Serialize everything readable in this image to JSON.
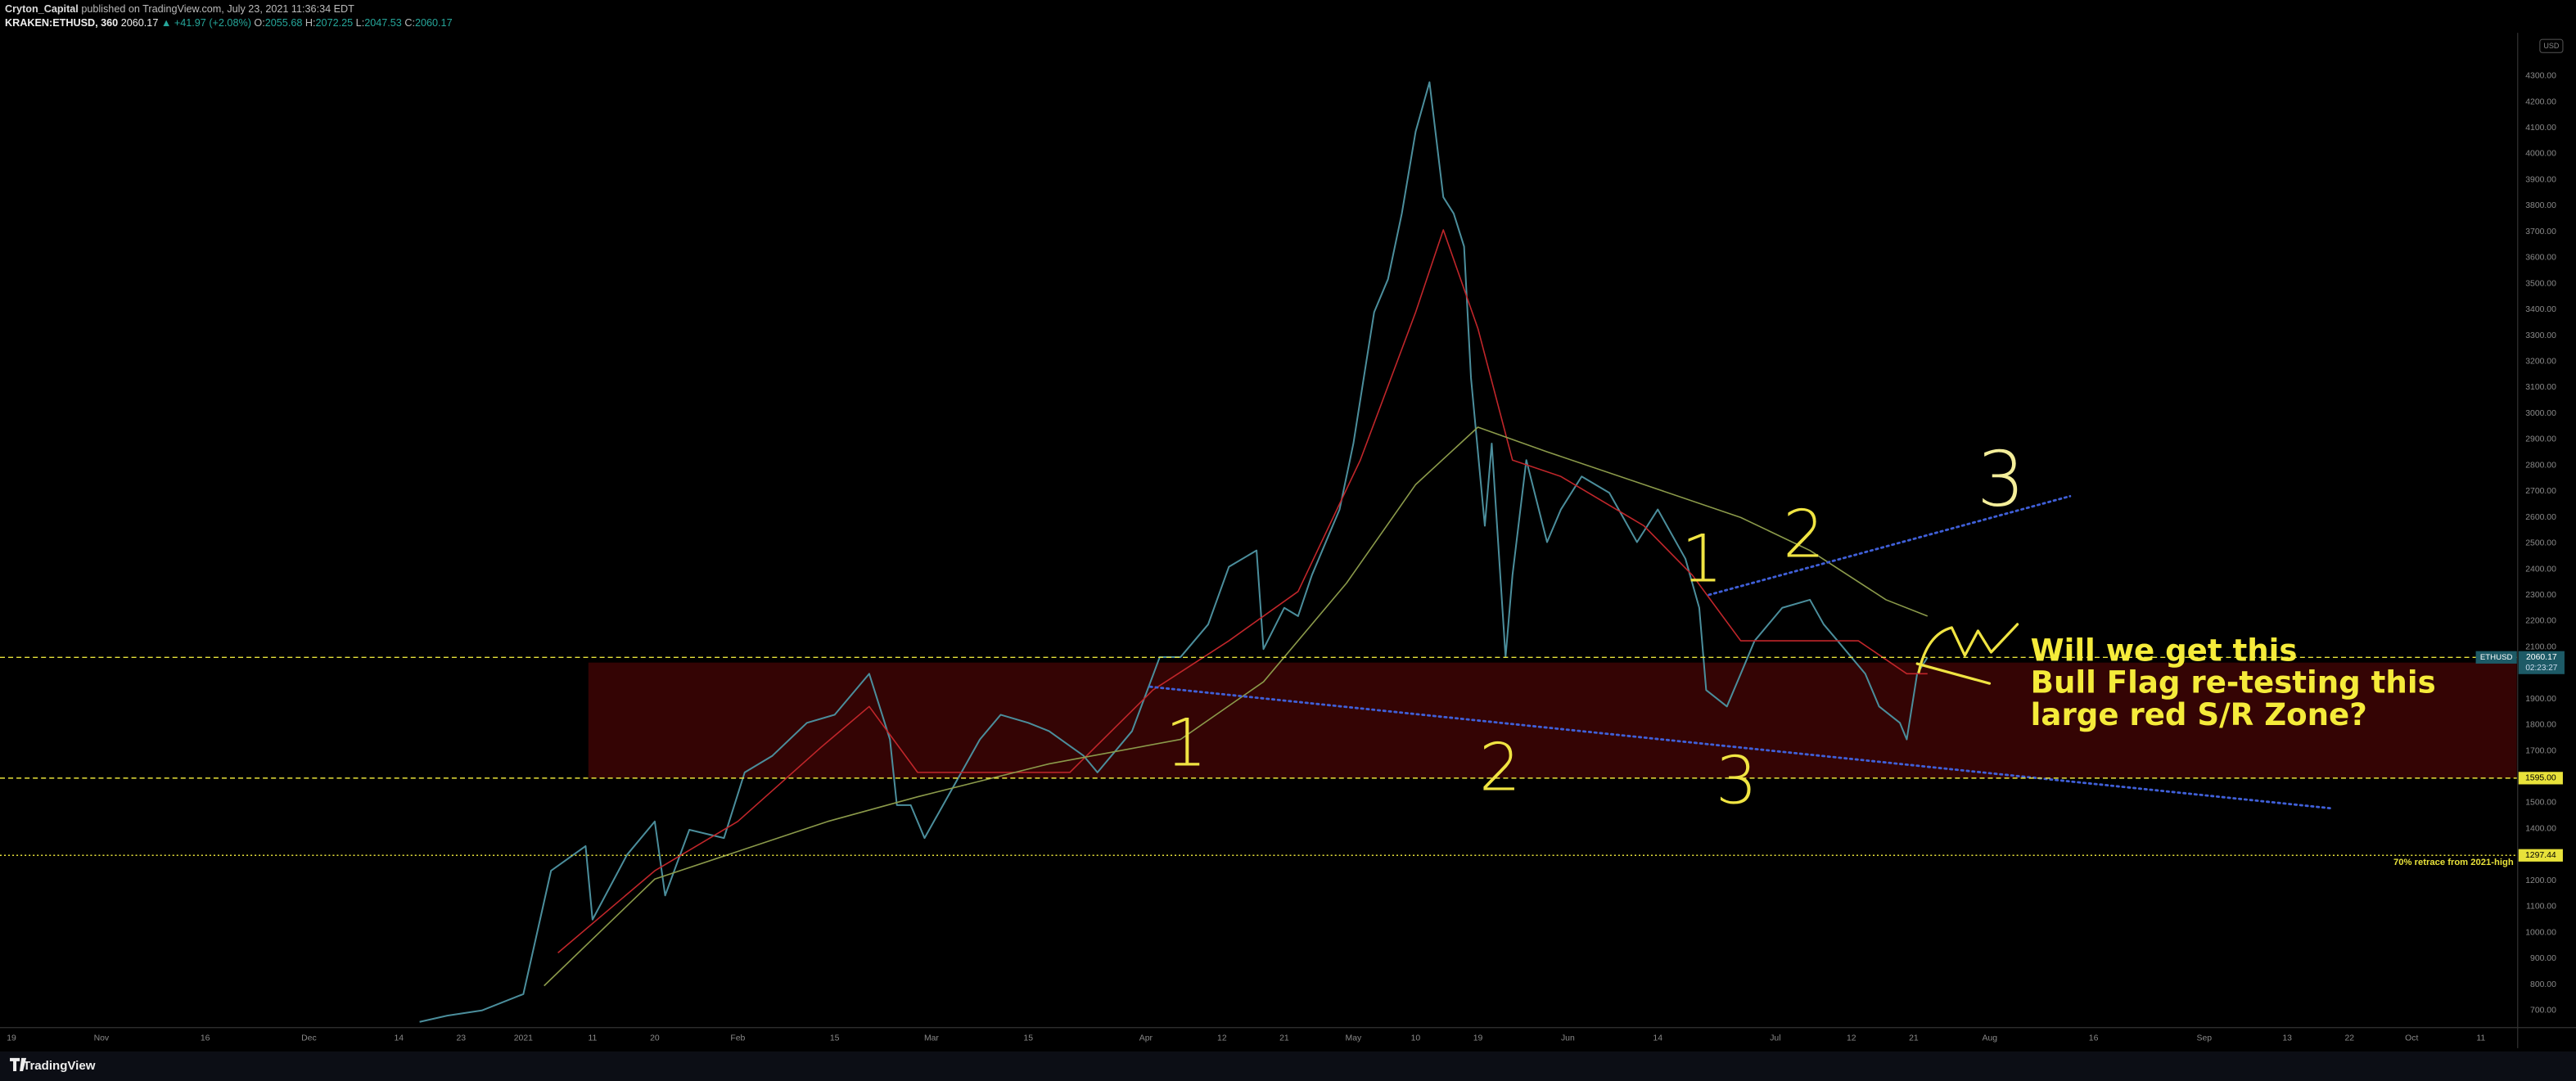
{
  "header": {
    "author": "Cryton_Capital",
    "published": "published on TradingView.com, July 23, 2021 11:36:34 EDT",
    "symbol": "KRAKEN:ETHUSD, 360",
    "price": "2060.17",
    "change": "▲ +41.97 (+2.08%)",
    "ohlc": [
      {
        "key": "O:",
        "value": "2055.68"
      },
      {
        "key": "H:",
        "value": "2072.25"
      },
      {
        "key": "L:",
        "value": "2047.53"
      },
      {
        "key": "C:",
        "value": "2060.17"
      }
    ],
    "currency": "USD",
    "brand": "TradingView"
  },
  "chart_data": {
    "type": "line",
    "xlim": [
      -1.66,
      362.2
    ],
    "ylim": [
      637,
      4466
    ],
    "grid": false,
    "xticks": [
      {
        "value": 0,
        "label": "19"
      },
      {
        "value": 13,
        "label": "Nov"
      },
      {
        "value": 28,
        "label": "16"
      },
      {
        "value": 43,
        "label": "Dec"
      },
      {
        "value": 56,
        "label": "14"
      },
      {
        "value": 65,
        "label": "23"
      },
      {
        "value": 74,
        "label": "2021"
      },
      {
        "value": 84,
        "label": "11"
      },
      {
        "value": 93,
        "label": "20"
      },
      {
        "value": 105,
        "label": "Feb"
      },
      {
        "value": 119,
        "label": "15"
      },
      {
        "value": 133,
        "label": "Mar"
      },
      {
        "value": 147,
        "label": "15"
      },
      {
        "value": 164,
        "label": "Apr"
      },
      {
        "value": 175,
        "label": "12"
      },
      {
        "value": 184,
        "label": "21"
      },
      {
        "value": 194,
        "label": "May"
      },
      {
        "value": 203,
        "label": "10"
      },
      {
        "value": 212,
        "label": "19"
      },
      {
        "value": 225,
        "label": "Jun"
      },
      {
        "value": 238,
        "label": "14"
      },
      {
        "value": 255,
        "label": "Jul"
      },
      {
        "value": 266,
        "label": "12"
      },
      {
        "value": 275,
        "label": "21"
      },
      {
        "value": 286,
        "label": "Aug"
      },
      {
        "value": 301,
        "label": "16"
      },
      {
        "value": 317,
        "label": "Sep"
      },
      {
        "value": 329,
        "label": "13"
      },
      {
        "value": 338,
        "label": "22"
      },
      {
        "value": 347,
        "label": "Oct"
      },
      {
        "value": 357,
        "label": "11"
      }
    ],
    "yticks": [
      {
        "value": 700,
        "label": "700.00"
      },
      {
        "value": 800,
        "label": "800.00"
      },
      {
        "value": 900,
        "label": "900.00"
      },
      {
        "value": 1000,
        "label": "1000.00"
      },
      {
        "value": 1100,
        "label": "1100.00"
      },
      {
        "value": 1200,
        "label": "1200.00"
      },
      {
        "value": 1400,
        "label": "1400.00"
      },
      {
        "value": 1500,
        "label": "1500.00"
      },
      {
        "value": 1700,
        "label": "1700.00"
      },
      {
        "value": 1800,
        "label": "1800.00"
      },
      {
        "value": 1900,
        "label": "1900.00"
      },
      {
        "value": 2100,
        "label": "2100.00"
      },
      {
        "value": 2200,
        "label": "2200.00"
      },
      {
        "value": 2300,
        "label": "2300.00"
      },
      {
        "value": 2400,
        "label": "2400.00"
      },
      {
        "value": 2500,
        "label": "2500.00"
      },
      {
        "value": 2600,
        "label": "2600.00"
      },
      {
        "value": 2700,
        "label": "2700.00"
      },
      {
        "value": 2800,
        "label": "2800.00"
      },
      {
        "value": 2900,
        "label": "2900.00"
      },
      {
        "value": 3000,
        "label": "3000.00"
      },
      {
        "value": 3100,
        "label": "3100.00"
      },
      {
        "value": 3200,
        "label": "3200.00"
      },
      {
        "value": 3300,
        "label": "3300.00"
      },
      {
        "value": 3400,
        "label": "3400.00"
      },
      {
        "value": 3500,
        "label": "3500.00"
      },
      {
        "value": 3600,
        "label": "3600.00"
      },
      {
        "value": 3700,
        "label": "3700.00"
      },
      {
        "value": 3800,
        "label": "3800.00"
      },
      {
        "value": 3900,
        "label": "3900.00"
      },
      {
        "value": 4000,
        "label": "4000.00"
      },
      {
        "value": 4100,
        "label": "4100.00"
      },
      {
        "value": 4200,
        "label": "4200.00"
      },
      {
        "value": 4300,
        "label": "4300.00"
      }
    ],
    "series": [
      {
        "color": "#4b8e9c",
        "x": [
          59,
          63,
          68,
          74,
          78,
          83,
          84,
          89,
          93,
          94.5,
          98,
          103,
          106,
          110,
          115,
          119,
          124,
          127,
          128,
          130,
          132,
          136,
          140,
          143,
          147,
          150,
          155,
          157,
          162,
          166,
          169,
          173,
          176,
          180,
          181,
          184,
          186,
          188,
          192,
          194,
          197,
          199,
          201,
          203,
          205,
          207,
          208.5,
          210,
          211,
          213,
          214,
          216,
          217,
          219,
          222,
          224,
          227,
          231,
          235,
          238,
          242,
          244,
          245,
          248,
          250,
          252,
          256,
          260,
          262,
          264,
          268,
          270,
          273,
          274,
          275.5,
          277
        ],
        "values": [
          656,
          680,
          700,
          763,
          1238,
          1333,
          1050,
          1300,
          1428,
          1143,
          1396,
          1364,
          1617,
          1681,
          1808,
          1839,
          1997,
          1744,
          1491,
          1491,
          1364,
          1554,
          1744,
          1839,
          1808,
          1776,
          1681,
          1617,
          1776,
          2061,
          2061,
          2187,
          2409,
          2472,
          2092,
          2251,
          2219,
          2377,
          2630,
          2884,
          3390,
          3517,
          3770,
          4086,
          4276,
          3833,
          3770,
          3643,
          3137,
          2567,
          2884,
          2061,
          2377,
          2820,
          2504,
          2630,
          2757,
          2694,
          2504,
          2630,
          2440,
          2251,
          1934,
          1871,
          1997,
          2124,
          2251,
          2282,
          2187,
          2124,
          1997,
          1871,
          1808,
          1744,
          1997,
          2060.17
        ]
      },
      {
        "color": "#c0262a",
        "x": [
          79,
          93,
          105,
          117,
          124,
          131,
          141,
          153,
          165,
          176,
          186,
          195,
          203,
          207,
          212,
          217,
          224,
          236,
          243,
          250,
          260,
          267,
          274,
          277
        ],
        "values": [
          922,
          1238,
          1428,
          1713,
          1871,
          1617,
          1617,
          1617,
          1934,
          2124,
          2314,
          2820,
          3390,
          3707,
          3327,
          2820,
          2757,
          2567,
          2377,
          2124,
          2124,
          2124,
          1997,
          1997
        ]
      },
      {
        "color": "#8b9a4a",
        "x": [
          77,
          93,
          118,
          131,
          150,
          169,
          181,
          193,
          203,
          212,
          222,
          236,
          250,
          260,
          271,
          277
        ],
        "values": [
          795,
          1206,
          1428,
          1523,
          1650,
          1744,
          1966,
          2346,
          2726,
          2947,
          2852,
          2726,
          2599,
          2472,
          2282,
          2219
        ]
      }
    ],
    "zone": {
      "ylim": [
        1595,
        2040
      ],
      "xstart": 83.4,
      "color": "#3a0404"
    },
    "last_price": {
      "symbol": "ETHUSD",
      "value": 2060.17,
      "label": "2060.17",
      "countdown": "02:23:27",
      "color": "#1d5a66"
    },
    "levels": [
      {
        "value": 1595,
        "label": "1595.00"
      },
      {
        "value": 1297.44,
        "label": "1297.44",
        "note": "70% retrace from 2021-high"
      }
    ],
    "level_color": "#e8e23a",
    "trendlines": [
      {
        "x": [
          164.6,
          335.6
        ],
        "y": [
          1947,
          1478
        ]
      },
      {
        "x": [
          245.4,
          297.6
        ],
        "y": [
          2301,
          2681
        ]
      }
    ],
    "trend_color": "#3f5fd8",
    "annotations": [
      "1",
      "2",
      "3",
      "1",
      "2",
      "3"
    ],
    "question": [
      "Will we get this",
      "Bull Flag re-testing this",
      "large red S/R Zone?"
    ]
  }
}
